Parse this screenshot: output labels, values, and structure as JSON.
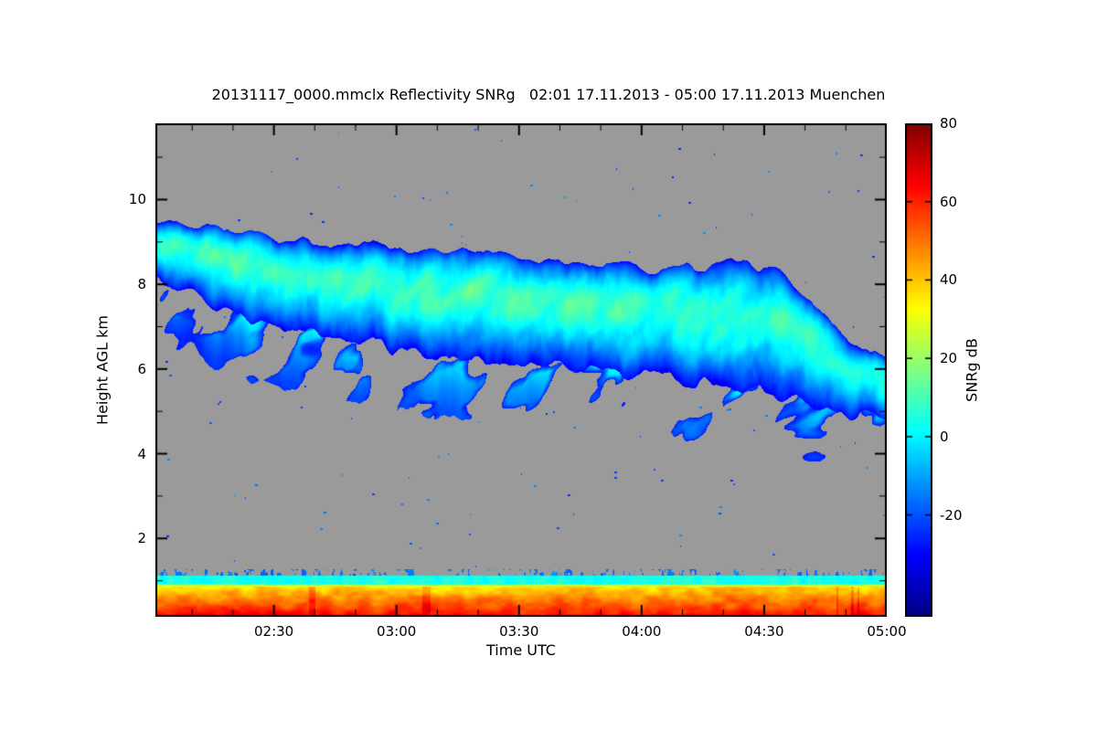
{
  "chart_data": {
    "type": "heatmap",
    "title": "20131117_0000.mmclx Reflectivity SNRg   02:01 17.11.2013 - 05:00 17.11.2013 Muenchen",
    "xlabel": "Time UTC",
    "ylabel": "Height AGL km",
    "x_axis": {
      "start": "02:01",
      "end": "05:00",
      "start_min": 121,
      "end_min": 300,
      "minor_step_min": 10,
      "ticks": [
        {
          "label": "02:30",
          "min": 150
        },
        {
          "label": "03:00",
          "min": 180
        },
        {
          "label": "03:30",
          "min": 210
        },
        {
          "label": "04:00",
          "min": 240
        },
        {
          "label": "04:30",
          "min": 270
        },
        {
          "label": "05:00",
          "min": 300
        }
      ]
    },
    "y_axis": {
      "min_km": 0.15,
      "max_km": 11.8,
      "minor_step_km": 1,
      "ticks": [
        {
          "label": "2",
          "km": 2
        },
        {
          "label": "4",
          "km": 4
        },
        {
          "label": "6",
          "km": 6
        },
        {
          "label": "8",
          "km": 8
        },
        {
          "label": "10",
          "km": 10
        }
      ]
    },
    "colorbar": {
      "label": "SNRg dB",
      "min": -46,
      "max": 80,
      "ticks": [
        {
          "label": "80",
          "v": 80
        },
        {
          "label": "60",
          "v": 60
        },
        {
          "label": "40",
          "v": 40
        },
        {
          "label": "20",
          "v": 20
        },
        {
          "label": "0",
          "v": 0
        },
        {
          "label": "-20",
          "v": -20
        }
      ]
    },
    "colors": {
      "nodata": "#9a9a9a",
      "frame": "#000000",
      "text": "#000000",
      "background": "#ffffff"
    },
    "colormap_stops": [
      {
        "p": 0.0,
        "rgb": [
          0,
          0,
          131
        ]
      },
      {
        "p": 0.125,
        "rgb": [
          0,
          0,
          255
        ]
      },
      {
        "p": 0.375,
        "rgb": [
          0,
          255,
          255
        ]
      },
      {
        "p": 0.625,
        "rgb": [
          255,
          255,
          0
        ]
      },
      {
        "p": 0.875,
        "rgb": [
          255,
          0,
          0
        ]
      },
      {
        "p": 1.0,
        "rgb": [
          128,
          0,
          0
        ]
      }
    ],
    "cloud_band": {
      "edge_db": -30,
      "streak_db": 11,
      "points": [
        {
          "f": 0.0,
          "top": 9.55,
          "base": 8.05,
          "core": 7
        },
        {
          "f": 0.04,
          "top": 9.4,
          "base": 7.8,
          "core": 8
        },
        {
          "f": 0.08,
          "top": 9.3,
          "base": 7.55,
          "core": 8
        },
        {
          "f": 0.13,
          "top": 9.15,
          "base": 7.3,
          "core": 9
        },
        {
          "f": 0.18,
          "top": 9.05,
          "base": 7.05,
          "core": 9
        },
        {
          "f": 0.24,
          "top": 8.95,
          "base": 6.85,
          "core": 10
        },
        {
          "f": 0.3,
          "top": 8.95,
          "base": 6.6,
          "core": 10
        },
        {
          "f": 0.36,
          "top": 8.85,
          "base": 6.45,
          "core": 10
        },
        {
          "f": 0.42,
          "top": 8.8,
          "base": 6.3,
          "core": 10
        },
        {
          "f": 0.48,
          "top": 8.75,
          "base": 6.15,
          "core": 10
        },
        {
          "f": 0.54,
          "top": 8.6,
          "base": 6.05,
          "core": 9
        },
        {
          "f": 0.6,
          "top": 8.5,
          "base": 5.95,
          "core": 9
        },
        {
          "f": 0.66,
          "top": 8.4,
          "base": 5.9,
          "core": 9
        },
        {
          "f": 0.7,
          "top": 8.35,
          "base": 5.85,
          "core": 9
        },
        {
          "f": 0.74,
          "top": 8.45,
          "base": 5.7,
          "core": 9
        },
        {
          "f": 0.78,
          "top": 8.55,
          "base": 5.6,
          "core": 8
        },
        {
          "f": 0.82,
          "top": 8.45,
          "base": 5.45,
          "core": 8
        },
        {
          "f": 0.86,
          "top": 8.2,
          "base": 5.3,
          "core": 7
        },
        {
          "f": 0.9,
          "top": 7.5,
          "base": 5.15,
          "core": 6
        },
        {
          "f": 0.94,
          "top": 6.8,
          "base": 5.0,
          "core": 5
        },
        {
          "f": 0.97,
          "top": 6.5,
          "base": 4.9,
          "core": 5
        },
        {
          "f": 1.0,
          "top": 6.3,
          "base": 4.8,
          "core": 5
        }
      ]
    },
    "surface_layers": {
      "speckle_top_km": 1.26,
      "cyan_top_km": 1.12,
      "cyan_bottom_km": 0.92,
      "cyan_db": 4,
      "hot_top_km": 0.86,
      "hot_top_db": 36,
      "hot_bottom_db": 64,
      "noise_db": 9
    },
    "speckles": {
      "count": 150,
      "db": -18
    }
  }
}
